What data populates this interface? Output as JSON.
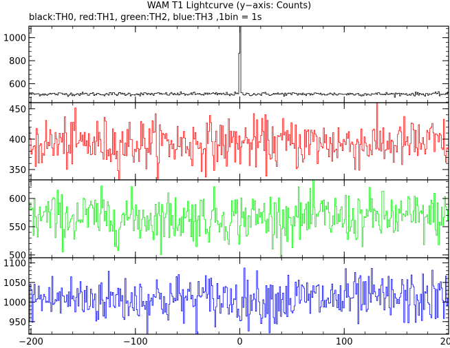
{
  "chart_data": {
    "type": "line",
    "title": "WAM T1 Lightcurve (y−axis: Counts)",
    "subtitle": "black:TH0, red:TH1, green:TH2, blue:TH3 ,1bin = 1s",
    "x_range": [
      -202,
      200
    ],
    "x_ticks": [
      -200,
      -100,
      0,
      100,
      200
    ],
    "x_tick_labels": [
      "−200",
      "−100",
      "0",
      "100",
      "200"
    ],
    "panels": [
      {
        "series_name": "TH0",
        "color": "#000000",
        "ylim": [
          435,
          1100
        ],
        "yticks": [
          600,
          800,
          1000
        ],
        "ytick_labels": [
          "600",
          "800",
          "1000"
        ],
        "baseline_mean": 510,
        "noise_sigma": 8,
        "features": [
          {
            "x": 0,
            "peak": 1100
          }
        ]
      },
      {
        "series_name": "TH1",
        "color": "#ff0000",
        "ylim": [
          333,
          460
        ],
        "yticks": [
          350,
          400,
          450
        ],
        "ytick_labels": [
          "350",
          "400",
          "450"
        ],
        "baseline_mean": 393,
        "noise_sigma": 21
      },
      {
        "series_name": "TH2",
        "color": "#00ee00",
        "ylim": [
          495,
          633
        ],
        "yticks": [
          500,
          550,
          600
        ],
        "ytick_labels": [
          "500",
          "550",
          "600"
        ],
        "baseline_mean": 566,
        "noise_sigma": 23
      },
      {
        "series_name": "TH3",
        "color": "#0000ff",
        "ylim": [
          918,
          1113
        ],
        "yticks": [
          950,
          1000,
          1050,
          1100
        ],
        "ytick_labels": [
          "950",
          "1000",
          "1050",
          "1100"
        ],
        "baseline_mean": 1008,
        "noise_sigma": 33
      }
    ]
  }
}
